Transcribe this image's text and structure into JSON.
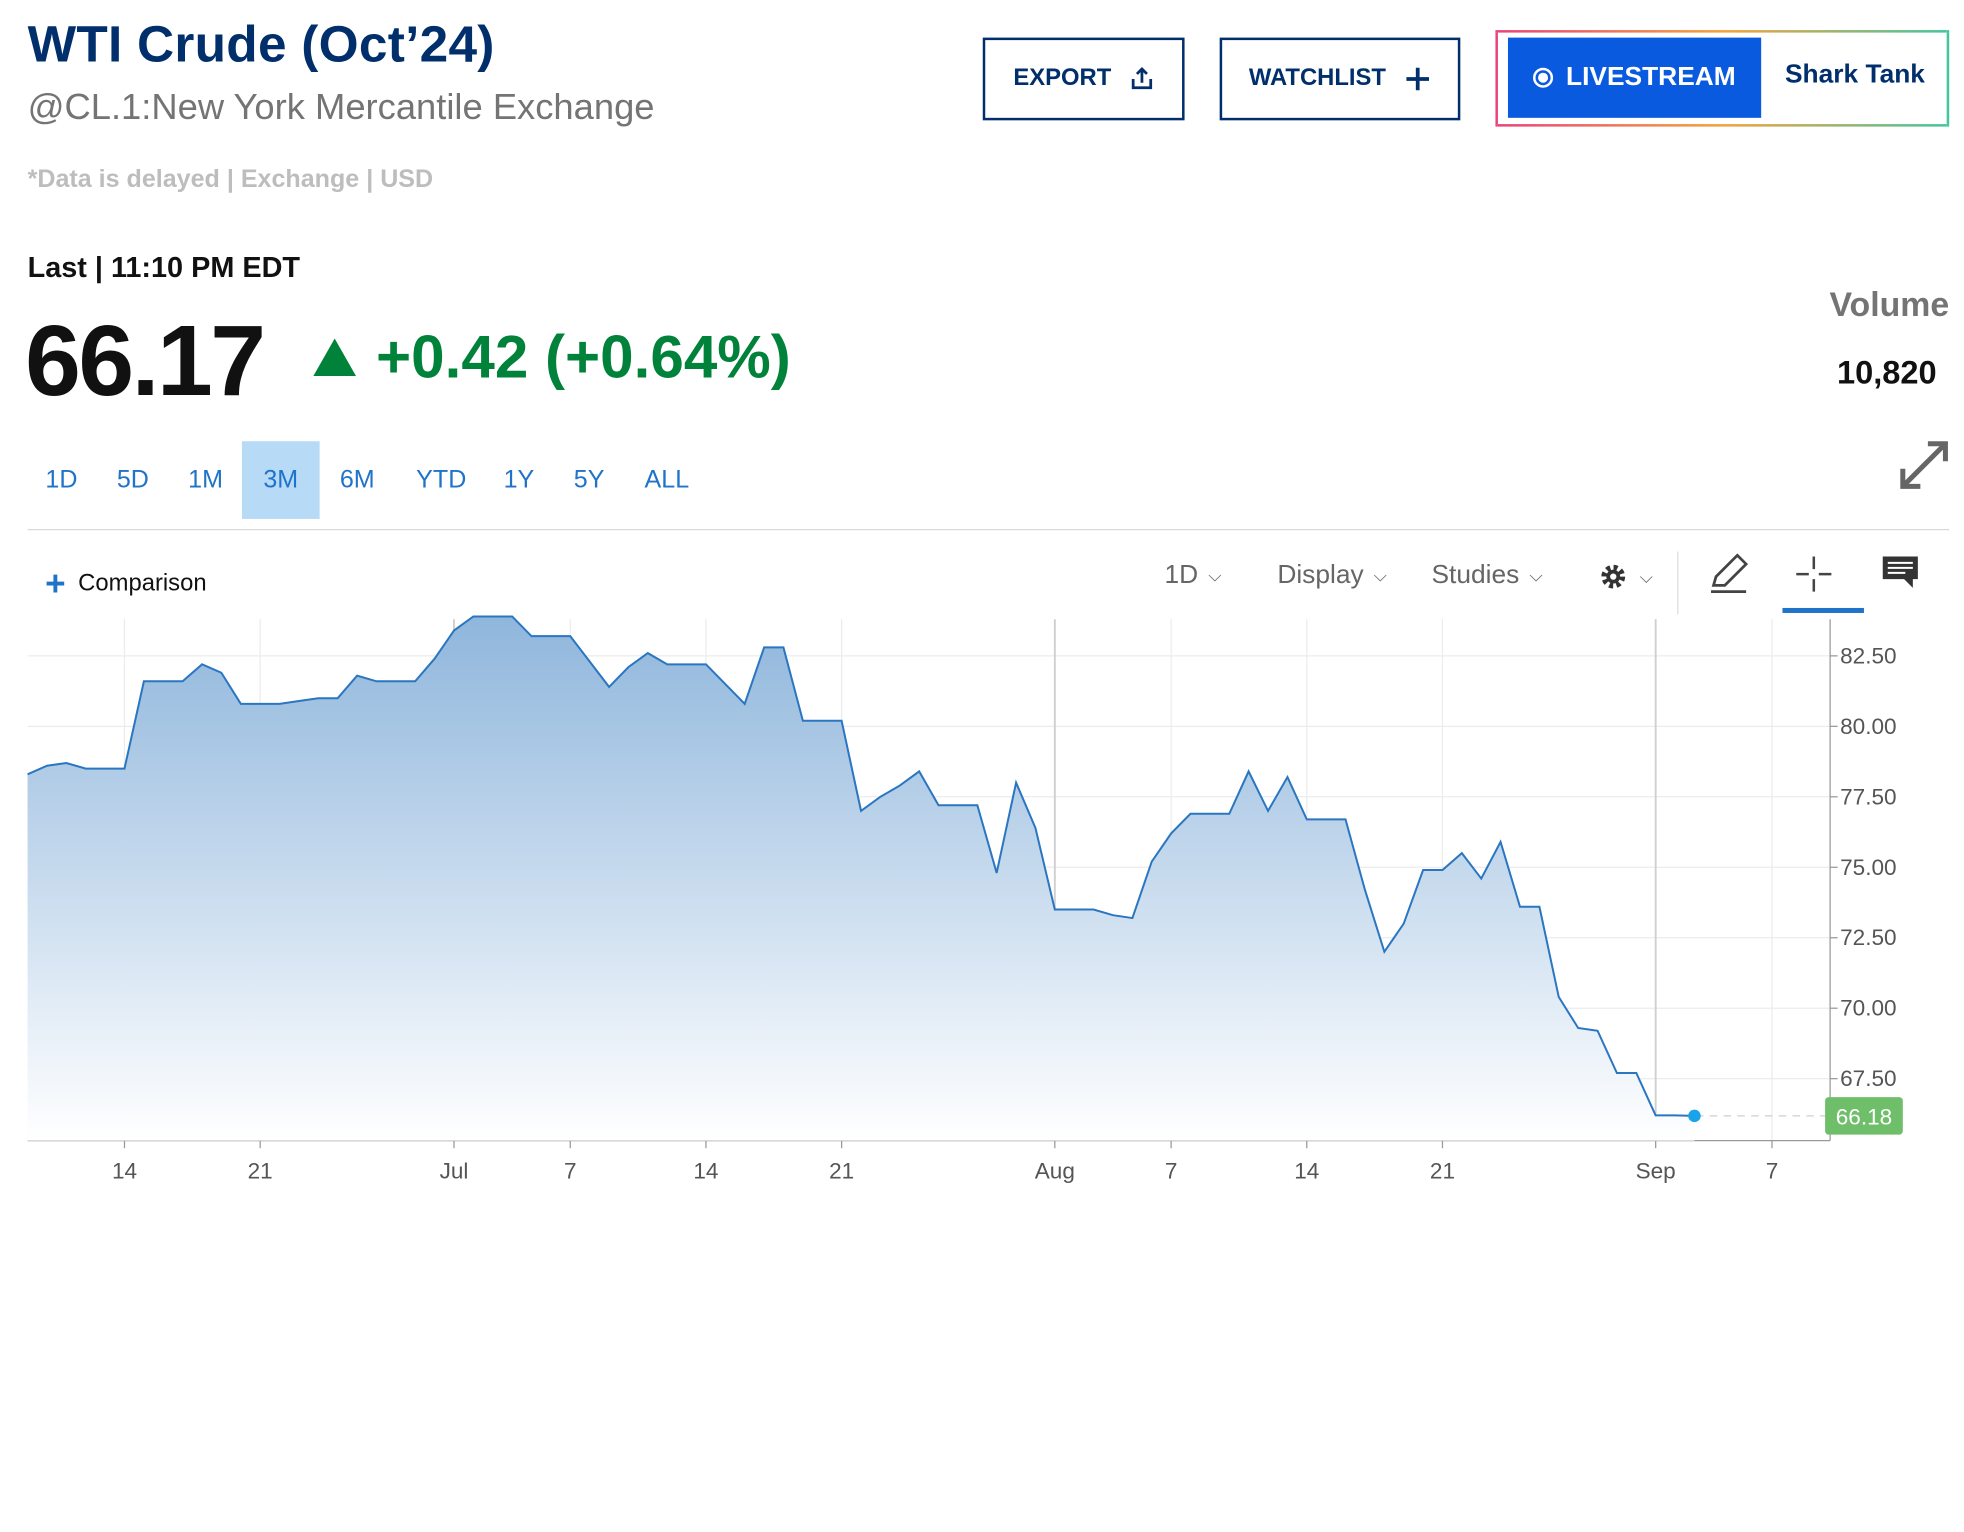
{
  "header": {
    "title": "WTI Crude (Oct’24)",
    "subtitle": "@CL.1:New York Mercantile Exchange",
    "delay_note": "*Data is delayed | Exchange | USD"
  },
  "actions": {
    "export_label": "EXPORT",
    "watchlist_label": "WATCHLIST",
    "livestream_label": "LIVESTREAM",
    "shark_tank_label": "Shark Tank"
  },
  "quote": {
    "last_label": "Last | 11:10 PM EDT",
    "price": "66.17",
    "change": "+0.42 (+0.64%)",
    "direction": "up",
    "volume_label": "Volume",
    "volume_value": "10,820"
  },
  "ranges": [
    "1D",
    "5D",
    "1M",
    "3M",
    "6M",
    "YTD",
    "1Y",
    "5Y",
    "ALL"
  ],
  "selected_range": "3M",
  "toolbar": {
    "comparison_label": "Comparison",
    "interval_label": "1D",
    "display_label": "Display",
    "studies_label": "Studies",
    "icons": [
      "gear-icon",
      "pencil-icon",
      "crosshair-icon",
      "comment-icon",
      "expand-icon"
    ]
  },
  "colors": {
    "brand_navy": "#002f6c",
    "accent_blue": "#1f73c8",
    "live_blue": "#0a5ae0",
    "up_green": "#01823b",
    "price_tag_green": "#6fbf6a",
    "line_blue": "#2a76c0"
  },
  "chart_data": {
    "type": "area",
    "y_ticks": [
      "82.50",
      "80.00",
      "77.50",
      "75.00",
      "72.50",
      "70.00",
      "67.50"
    ],
    "ylim": [
      65.3,
      83.8
    ],
    "x_tick_labels": [
      {
        "label": "14",
        "date": "2024-06-14"
      },
      {
        "label": "21",
        "date": "2024-06-21"
      },
      {
        "label": "Jul",
        "date": "2024-07-01"
      },
      {
        "label": "7",
        "date": "2024-07-07"
      },
      {
        "label": "14",
        "date": "2024-07-14"
      },
      {
        "label": "21",
        "date": "2024-07-21"
      },
      {
        "label": "Aug",
        "date": "2024-08-01"
      },
      {
        "label": "7",
        "date": "2024-08-07"
      },
      {
        "label": "14",
        "date": "2024-08-14"
      },
      {
        "label": "21",
        "date": "2024-08-21"
      },
      {
        "label": "Sep",
        "date": "2024-09-01"
      },
      {
        "label": "7",
        "date": "2024-09-07"
      }
    ],
    "x_range": [
      "2024-06-09",
      "2024-09-10"
    ],
    "points": [
      [
        "2024-06-09",
        78.3
      ],
      [
        "2024-06-10",
        78.6
      ],
      [
        "2024-06-11",
        78.7
      ],
      [
        "2024-06-12",
        78.5
      ],
      [
        "2024-06-13",
        78.5
      ],
      [
        "2024-06-14",
        78.5
      ],
      [
        "2024-06-15",
        81.6
      ],
      [
        "2024-06-16",
        81.6
      ],
      [
        "2024-06-17",
        81.6
      ],
      [
        "2024-06-18",
        82.2
      ],
      [
        "2024-06-19",
        81.9
      ],
      [
        "2024-06-20",
        80.8
      ],
      [
        "2024-06-21",
        80.8
      ],
      [
        "2024-06-22",
        80.8
      ],
      [
        "2024-06-23",
        80.9
      ],
      [
        "2024-06-24",
        81.0
      ],
      [
        "2024-06-25",
        81.0
      ],
      [
        "2024-06-26",
        81.8
      ],
      [
        "2024-06-27",
        81.6
      ],
      [
        "2024-06-28",
        81.6
      ],
      [
        "2024-06-29",
        81.6
      ],
      [
        "2024-06-30",
        82.4
      ],
      [
        "2024-07-01",
        83.4
      ],
      [
        "2024-07-02",
        83.9
      ],
      [
        "2024-07-03",
        83.9
      ],
      [
        "2024-07-04",
        83.9
      ],
      [
        "2024-07-05",
        83.2
      ],
      [
        "2024-07-06",
        83.2
      ],
      [
        "2024-07-07",
        83.2
      ],
      [
        "2024-07-08",
        82.3
      ],
      [
        "2024-07-09",
        81.4
      ],
      [
        "2024-07-10",
        82.1
      ],
      [
        "2024-07-11",
        82.6
      ],
      [
        "2024-07-12",
        82.2
      ],
      [
        "2024-07-13",
        82.2
      ],
      [
        "2024-07-14",
        82.2
      ],
      [
        "2024-07-15",
        81.5
      ],
      [
        "2024-07-16",
        80.8
      ],
      [
        "2024-07-17",
        82.8
      ],
      [
        "2024-07-18",
        82.8
      ],
      [
        "2024-07-19",
        80.2
      ],
      [
        "2024-07-20",
        80.2
      ],
      [
        "2024-07-21",
        80.2
      ],
      [
        "2024-07-22",
        77.0
      ],
      [
        "2024-07-23",
        77.5
      ],
      [
        "2024-07-24",
        77.9
      ],
      [
        "2024-07-25",
        78.4
      ],
      [
        "2024-07-26",
        77.2
      ],
      [
        "2024-07-27",
        77.2
      ],
      [
        "2024-07-28",
        77.2
      ],
      [
        "2024-07-29",
        74.8
      ],
      [
        "2024-07-30",
        78.0
      ],
      [
        "2024-07-31",
        76.4
      ],
      [
        "2024-08-01",
        73.5
      ],
      [
        "2024-08-02",
        73.5
      ],
      [
        "2024-08-03",
        73.5
      ],
      [
        "2024-08-04",
        73.3
      ],
      [
        "2024-08-05",
        73.2
      ],
      [
        "2024-08-06",
        75.2
      ],
      [
        "2024-08-07",
        76.2
      ],
      [
        "2024-08-08",
        76.9
      ],
      [
        "2024-08-09",
        76.9
      ],
      [
        "2024-08-10",
        76.9
      ],
      [
        "2024-08-11",
        78.4
      ],
      [
        "2024-08-12",
        77.0
      ],
      [
        "2024-08-13",
        78.2
      ],
      [
        "2024-08-14",
        76.7
      ],
      [
        "2024-08-15",
        76.7
      ],
      [
        "2024-08-16",
        76.7
      ],
      [
        "2024-08-17",
        74.2
      ],
      [
        "2024-08-18",
        72.0
      ],
      [
        "2024-08-19",
        73.0
      ],
      [
        "2024-08-20",
        74.9
      ],
      [
        "2024-08-21",
        74.9
      ],
      [
        "2024-08-22",
        75.5
      ],
      [
        "2024-08-23",
        74.6
      ],
      [
        "2024-08-24",
        75.9
      ],
      [
        "2024-08-25",
        73.6
      ],
      [
        "2024-08-26",
        73.6
      ],
      [
        "2024-08-27",
        70.4
      ],
      [
        "2024-08-28",
        69.3
      ],
      [
        "2024-08-29",
        69.2
      ],
      [
        "2024-08-30",
        67.7
      ],
      [
        "2024-08-31",
        67.7
      ],
      [
        "2024-09-01",
        66.2
      ],
      [
        "2024-09-02",
        66.2
      ],
      [
        "2024-09-03",
        66.18
      ]
    ],
    "last_value_label": "66.18",
    "grid": true,
    "y_axis_position": "right"
  }
}
